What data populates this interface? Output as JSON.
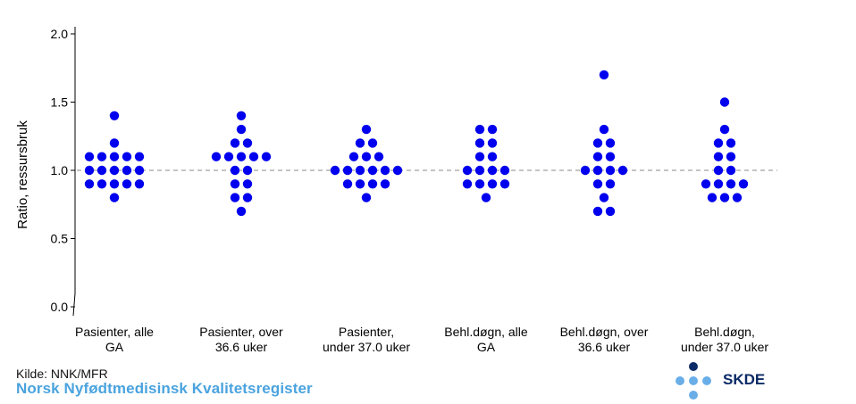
{
  "chart_data": {
    "type": "scatter",
    "subtype": "dot-strip",
    "ylabel": "Ratio, ressursbruk",
    "ylim": [
      0.0,
      2.0
    ],
    "yticks": [
      0.0,
      0.5,
      1.0,
      1.5,
      2.0
    ],
    "ytick_labels": [
      "0.0",
      "0.5",
      "1.0",
      "1.5",
      "2.0"
    ],
    "axis_break": true,
    "reference_line": {
      "y": 1.0,
      "style": "dashed",
      "color": "#888888"
    },
    "marker_color": "#0000ee",
    "categories": [
      {
        "label": [
          "Pasienter, alle",
          "GA"
        ],
        "values": [
          0.8,
          0.9,
          0.9,
          0.9,
          0.9,
          0.9,
          1.0,
          1.0,
          1.0,
          1.0,
          1.0,
          1.1,
          1.1,
          1.1,
          1.1,
          1.1,
          1.2,
          1.4
        ]
      },
      {
        "label": [
          "Pasienter, over",
          "36.6 uker"
        ],
        "values": [
          0.7,
          0.8,
          0.8,
          0.9,
          0.9,
          1.0,
          1.0,
          1.1,
          1.1,
          1.1,
          1.1,
          1.1,
          1.2,
          1.2,
          1.3,
          1.4
        ]
      },
      {
        "label": [
          "Pasienter,",
          "under 37.0 uker"
        ],
        "values": [
          0.8,
          0.9,
          0.9,
          0.9,
          0.9,
          1.0,
          1.0,
          1.0,
          1.0,
          1.0,
          1.0,
          1.1,
          1.1,
          1.1,
          1.2,
          1.2,
          1.3
        ]
      },
      {
        "label": [
          "Behl.døgn, alle",
          "GA"
        ],
        "values": [
          0.8,
          0.9,
          0.9,
          0.9,
          0.9,
          1.0,
          1.0,
          1.0,
          1.0,
          1.1,
          1.1,
          1.2,
          1.2,
          1.3,
          1.3
        ]
      },
      {
        "label": [
          "Behl.døgn, over",
          "36.6 uker"
        ],
        "values": [
          0.7,
          0.7,
          0.8,
          0.9,
          0.9,
          1.0,
          1.0,
          1.0,
          1.0,
          1.1,
          1.1,
          1.2,
          1.2,
          1.3,
          1.7
        ]
      },
      {
        "label": [
          "Behl.døgn,",
          "under 37.0 uker"
        ],
        "values": [
          0.8,
          0.8,
          0.8,
          0.9,
          0.9,
          0.9,
          0.9,
          1.0,
          1.0,
          1.1,
          1.1,
          1.2,
          1.2,
          1.3,
          1.5
        ]
      }
    ]
  },
  "footer": {
    "source": "Kilde: NNK/MFR",
    "registry": "Norsk Nyfødtmedisinsk Kvalitetsregister"
  },
  "logo": {
    "text": "SKDE",
    "colors": {
      "light": "#6aaee8",
      "dark": "#0b2a66"
    }
  }
}
